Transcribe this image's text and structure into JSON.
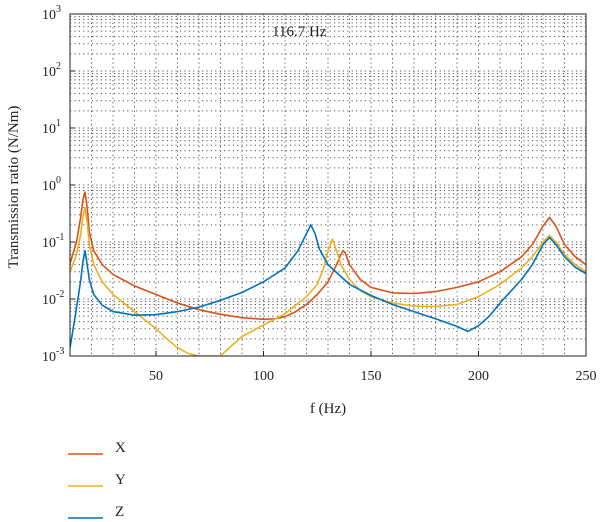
{
  "chart_data": {
    "type": "line",
    "title": "",
    "annotation": "116.7 Hz",
    "xlabel": "f (Hz)",
    "ylabel": "Transmission ratio (N/Nm)",
    "xlim": [
      10,
      250
    ],
    "ylim": [
      0.001,
      1000
    ],
    "yscale": "log",
    "grid": true,
    "x_ticks": [
      50,
      100,
      150,
      200,
      250
    ],
    "y_ticks": [
      {
        "value": 0.001,
        "base": "10",
        "exp": "-3"
      },
      {
        "value": 0.01,
        "base": "10",
        "exp": "-2"
      },
      {
        "value": 0.1,
        "base": "10",
        "exp": "-1"
      },
      {
        "value": 1,
        "base": "10",
        "exp": "0"
      },
      {
        "value": 10,
        "base": "10",
        "exp": "1"
      },
      {
        "value": 100,
        "base": "10",
        "exp": "2"
      },
      {
        "value": 1000,
        "base": "10",
        "exp": "3"
      }
    ],
    "legend_position": "bottom-left",
    "series": [
      {
        "name": "X",
        "color": "#d95319",
        "points": [
          [
            10,
            0.042
          ],
          [
            13,
            0.1
          ],
          [
            15,
            0.28
          ],
          [
            16,
            0.55
          ],
          [
            17,
            0.75
          ],
          [
            18,
            0.4
          ],
          [
            19,
            0.15
          ],
          [
            21,
            0.07
          ],
          [
            25,
            0.04
          ],
          [
            30,
            0.027
          ],
          [
            40,
            0.017
          ],
          [
            50,
            0.012
          ],
          [
            60,
            0.0085
          ],
          [
            70,
            0.0065
          ],
          [
            80,
            0.0054
          ],
          [
            90,
            0.0047
          ],
          [
            100,
            0.0044
          ],
          [
            105,
            0.0045
          ],
          [
            110,
            0.0049
          ],
          [
            115,
            0.006
          ],
          [
            120,
            0.008
          ],
          [
            125,
            0.012
          ],
          [
            130,
            0.02
          ],
          [
            134,
            0.04
          ],
          [
            136,
            0.06
          ],
          [
            137,
            0.071
          ],
          [
            138,
            0.065
          ],
          [
            140,
            0.04
          ],
          [
            145,
            0.022
          ],
          [
            150,
            0.016
          ],
          [
            160,
            0.0128
          ],
          [
            170,
            0.0125
          ],
          [
            180,
            0.0135
          ],
          [
            190,
            0.016
          ],
          [
            200,
            0.02
          ],
          [
            210,
            0.03
          ],
          [
            220,
            0.055
          ],
          [
            225,
            0.09
          ],
          [
            230,
            0.19
          ],
          [
            233,
            0.27
          ],
          [
            236,
            0.19
          ],
          [
            240,
            0.09
          ],
          [
            245,
            0.055
          ],
          [
            250,
            0.04
          ]
        ]
      },
      {
        "name": "Y",
        "color": "#edb120",
        "points": [
          [
            10,
            0.03
          ],
          [
            13,
            0.06
          ],
          [
            15,
            0.14
          ],
          [
            16,
            0.28
          ],
          [
            17,
            0.4
          ],
          [
            18,
            0.22
          ],
          [
            19,
            0.09
          ],
          [
            21,
            0.04
          ],
          [
            25,
            0.02
          ],
          [
            30,
            0.012
          ],
          [
            40,
            0.006
          ],
          [
            50,
            0.003
          ],
          [
            55,
            0.002
          ],
          [
            60,
            0.0014
          ],
          [
            65,
            0.0011
          ],
          [
            70,
            0.001
          ],
          [
            80,
            0.001
          ],
          [
            85,
            0.0015
          ],
          [
            90,
            0.0022
          ],
          [
            100,
            0.0035
          ],
          [
            110,
            0.0055
          ],
          [
            120,
            0.011
          ],
          [
            125,
            0.018
          ],
          [
            128,
            0.035
          ],
          [
            130,
            0.07
          ],
          [
            132,
            0.112
          ],
          [
            134,
            0.07
          ],
          [
            136,
            0.04
          ],
          [
            140,
            0.022
          ],
          [
            145,
            0.014
          ],
          [
            150,
            0.011
          ],
          [
            160,
            0.0085
          ],
          [
            170,
            0.0075
          ],
          [
            180,
            0.0074
          ],
          [
            190,
            0.008
          ],
          [
            200,
            0.011
          ],
          [
            210,
            0.018
          ],
          [
            220,
            0.035
          ],
          [
            225,
            0.055
          ],
          [
            230,
            0.1
          ],
          [
            233,
            0.13
          ],
          [
            236,
            0.1
          ],
          [
            240,
            0.06
          ],
          [
            245,
            0.04
          ],
          [
            250,
            0.03
          ]
        ]
      },
      {
        "name": "Z",
        "color": "#0072bd",
        "points": [
          [
            10,
            0.0014
          ],
          [
            12,
            0.004
          ],
          [
            14,
            0.012
          ],
          [
            15,
            0.022
          ],
          [
            16,
            0.045
          ],
          [
            17,
            0.07
          ],
          [
            18,
            0.04
          ],
          [
            19,
            0.022
          ],
          [
            21,
            0.012
          ],
          [
            25,
            0.0078
          ],
          [
            30,
            0.006
          ],
          [
            40,
            0.0052
          ],
          [
            50,
            0.0053
          ],
          [
            60,
            0.006
          ],
          [
            70,
            0.0072
          ],
          [
            80,
            0.0095
          ],
          [
            90,
            0.013
          ],
          [
            100,
            0.02
          ],
          [
            110,
            0.035
          ],
          [
            116,
            0.07
          ],
          [
            120,
            0.14
          ],
          [
            122,
            0.2
          ],
          [
            124,
            0.14
          ],
          [
            126,
            0.075
          ],
          [
            130,
            0.04
          ],
          [
            140,
            0.018
          ],
          [
            150,
            0.0115
          ],
          [
            160,
            0.008
          ],
          [
            170,
            0.006
          ],
          [
            180,
            0.0045
          ],
          [
            190,
            0.0033
          ],
          [
            195,
            0.0027
          ],
          [
            200,
            0.0034
          ],
          [
            205,
            0.005
          ],
          [
            210,
            0.0085
          ],
          [
            220,
            0.022
          ],
          [
            225,
            0.04
          ],
          [
            230,
            0.09
          ],
          [
            233,
            0.12
          ],
          [
            236,
            0.09
          ],
          [
            240,
            0.055
          ],
          [
            245,
            0.036
          ],
          [
            250,
            0.028
          ]
        ]
      }
    ]
  }
}
